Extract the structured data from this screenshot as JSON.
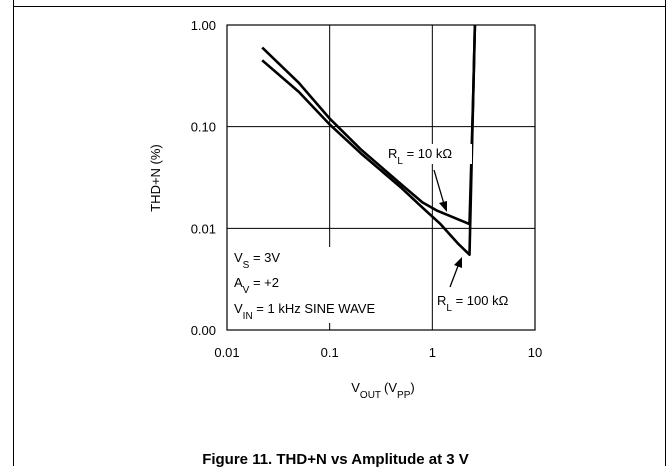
{
  "chart_data": {
    "type": "line",
    "title": "",
    "xlabel": "V_OUT (V_PP)",
    "xlabel_main": "V",
    "xlabel_sub": "OUT",
    "xlabel_unit_main": "V",
    "xlabel_unit_sub": "PP",
    "ylabel": "THD+N (%)",
    "x_scale": "log",
    "y_scale": "log",
    "xlim": [
      0.01,
      10
    ],
    "ylim": [
      0.001,
      1
    ],
    "x_ticks": [
      0.01,
      0.1,
      1,
      10
    ],
    "x_tick_labels": [
      "0.01",
      "0.1",
      "1",
      "10"
    ],
    "y_ticks": [
      0.001,
      0.01,
      0.1,
      1
    ],
    "y_tick_labels": [
      "0.00",
      "0.01",
      "0.10",
      "1.00"
    ],
    "grid": true,
    "series": [
      {
        "name": "R_L = 10 kΩ",
        "points": [
          [
            0.022,
            0.6
          ],
          [
            0.05,
            0.27
          ],
          [
            0.1,
            0.12
          ],
          [
            0.2,
            0.06
          ],
          [
            0.5,
            0.027
          ],
          [
            0.8,
            0.018
          ],
          [
            1.1,
            0.015
          ],
          [
            2.3,
            0.011
          ],
          [
            2.5,
            0.2
          ],
          [
            2.6,
            1.0
          ]
        ]
      },
      {
        "name": "R_L = 100 kΩ",
        "points": [
          [
            0.022,
            0.45
          ],
          [
            0.05,
            0.22
          ],
          [
            0.1,
            0.105
          ],
          [
            0.2,
            0.055
          ],
          [
            0.5,
            0.025
          ],
          [
            0.8,
            0.016
          ],
          [
            1.2,
            0.011
          ],
          [
            1.8,
            0.007
          ],
          [
            2.3,
            0.0055
          ],
          [
            2.5,
            0.2
          ],
          [
            2.6,
            1.0
          ]
        ]
      }
    ],
    "annotations": {
      "rl10": {
        "main": "R",
        "sub": "L",
        "rest": " = 10 kΩ"
      },
      "rl100": {
        "main": "R",
        "sub": "L",
        "rest": " = 100 kΩ"
      },
      "conditions": [
        {
          "main": "V",
          "sub": "S",
          "rest": " = 3V"
        },
        {
          "main": "A",
          "sub": "V",
          "rest": " = +2"
        },
        {
          "main": "V",
          "sub": "IN",
          "rest": " = 1 kHz SINE WAVE"
        }
      ]
    }
  },
  "caption": "Figure 11. THD+N vs Amplitude at 3 V"
}
